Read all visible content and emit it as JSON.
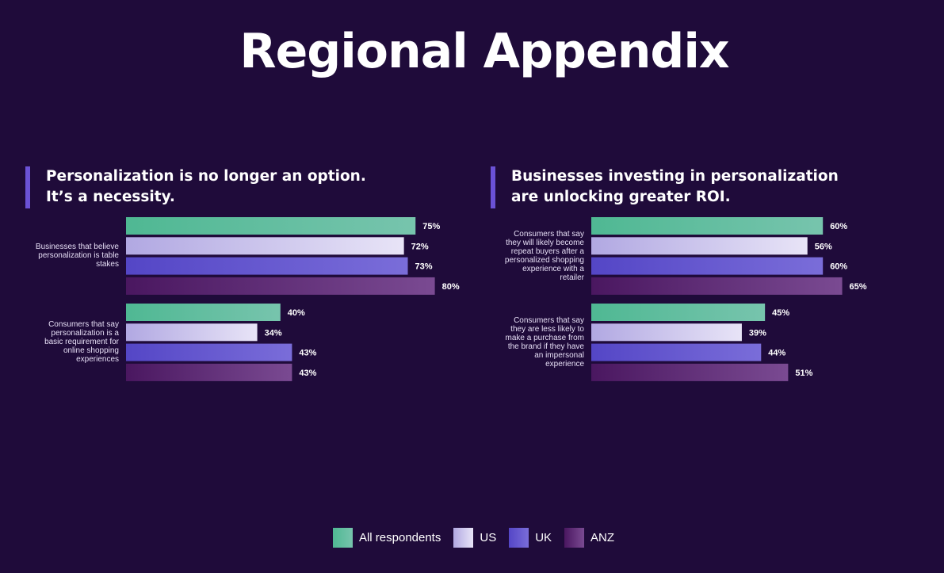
{
  "title": "Regional Appendix",
  "colors": {
    "background": "#1f0b3a",
    "accent": "#6b52d6"
  },
  "series": [
    {
      "name": "All respondents",
      "color_from": "#4fb893",
      "color_to": "#77c4ad"
    },
    {
      "name": "US",
      "color_from": "#b1a8e2",
      "color_to": "#e8e4f7"
    },
    {
      "name": "UK",
      "color_from": "#5446c6",
      "color_to": "#7a6dd9"
    },
    {
      "name": "ANZ",
      "color_from": "#4a1760",
      "color_to": "#7a4a92"
    }
  ],
  "chart_data": [
    {
      "type": "bar",
      "orientation": "horizontal",
      "title": "Personalization is no longer an option. It’s a necessity.",
      "series_names": [
        "All respondents",
        "US",
        "UK",
        "ANZ"
      ],
      "categories": [
        "Businesses that believe personalization is table stakes",
        "Consumers that say personalization is a basic requirement for online shopping experiences"
      ],
      "groups": [
        {
          "label_lines": [
            "Businesses that believe",
            "personalization is table",
            "stakes"
          ],
          "values": [
            75,
            72,
            73,
            80
          ],
          "value_labels": [
            "75%",
            "72%",
            "73%",
            "80%"
          ]
        },
        {
          "label_lines": [
            "Consumers that say",
            "personalization is a",
            "basic requirement for",
            "online shopping",
            "experiences"
          ],
          "values": [
            40,
            34,
            43,
            43
          ],
          "value_labels": [
            "40%",
            "34%",
            "43%",
            "43%"
          ]
        }
      ],
      "xlim": [
        0,
        100
      ],
      "legend": "bottom-center"
    },
    {
      "type": "bar",
      "orientation": "horizontal",
      "title": "Businesses investing in personalization are unlocking greater ROI.",
      "series_names": [
        "All respondents",
        "US",
        "UK",
        "ANZ"
      ],
      "categories": [
        "Consumers that say they will likely become repeat buyers after a personalized shopping experience with a retailer",
        "Consumers that say they are less likely to make a purchase from the brand if they have an impersonal experience"
      ],
      "groups": [
        {
          "label_lines": [
            "Consumers that say",
            "they will likely become",
            "repeat buyers after a",
            "personalized shopping",
            "experience with a",
            "retailer"
          ],
          "values": [
            60,
            56,
            60,
            65
          ],
          "value_labels": [
            "60%",
            "56%",
            "60%",
            "65%"
          ]
        },
        {
          "label_lines": [
            "Consumers that say",
            "they are less likely to",
            "make a purchase from",
            "the brand if they have",
            "an impersonal",
            "experience"
          ],
          "values": [
            45,
            39,
            44,
            51
          ],
          "value_labels": [
            "45%",
            "39%",
            "44%",
            "51%"
          ]
        }
      ],
      "xlim": [
        0,
        100
      ],
      "legend": "bottom-center"
    }
  ]
}
